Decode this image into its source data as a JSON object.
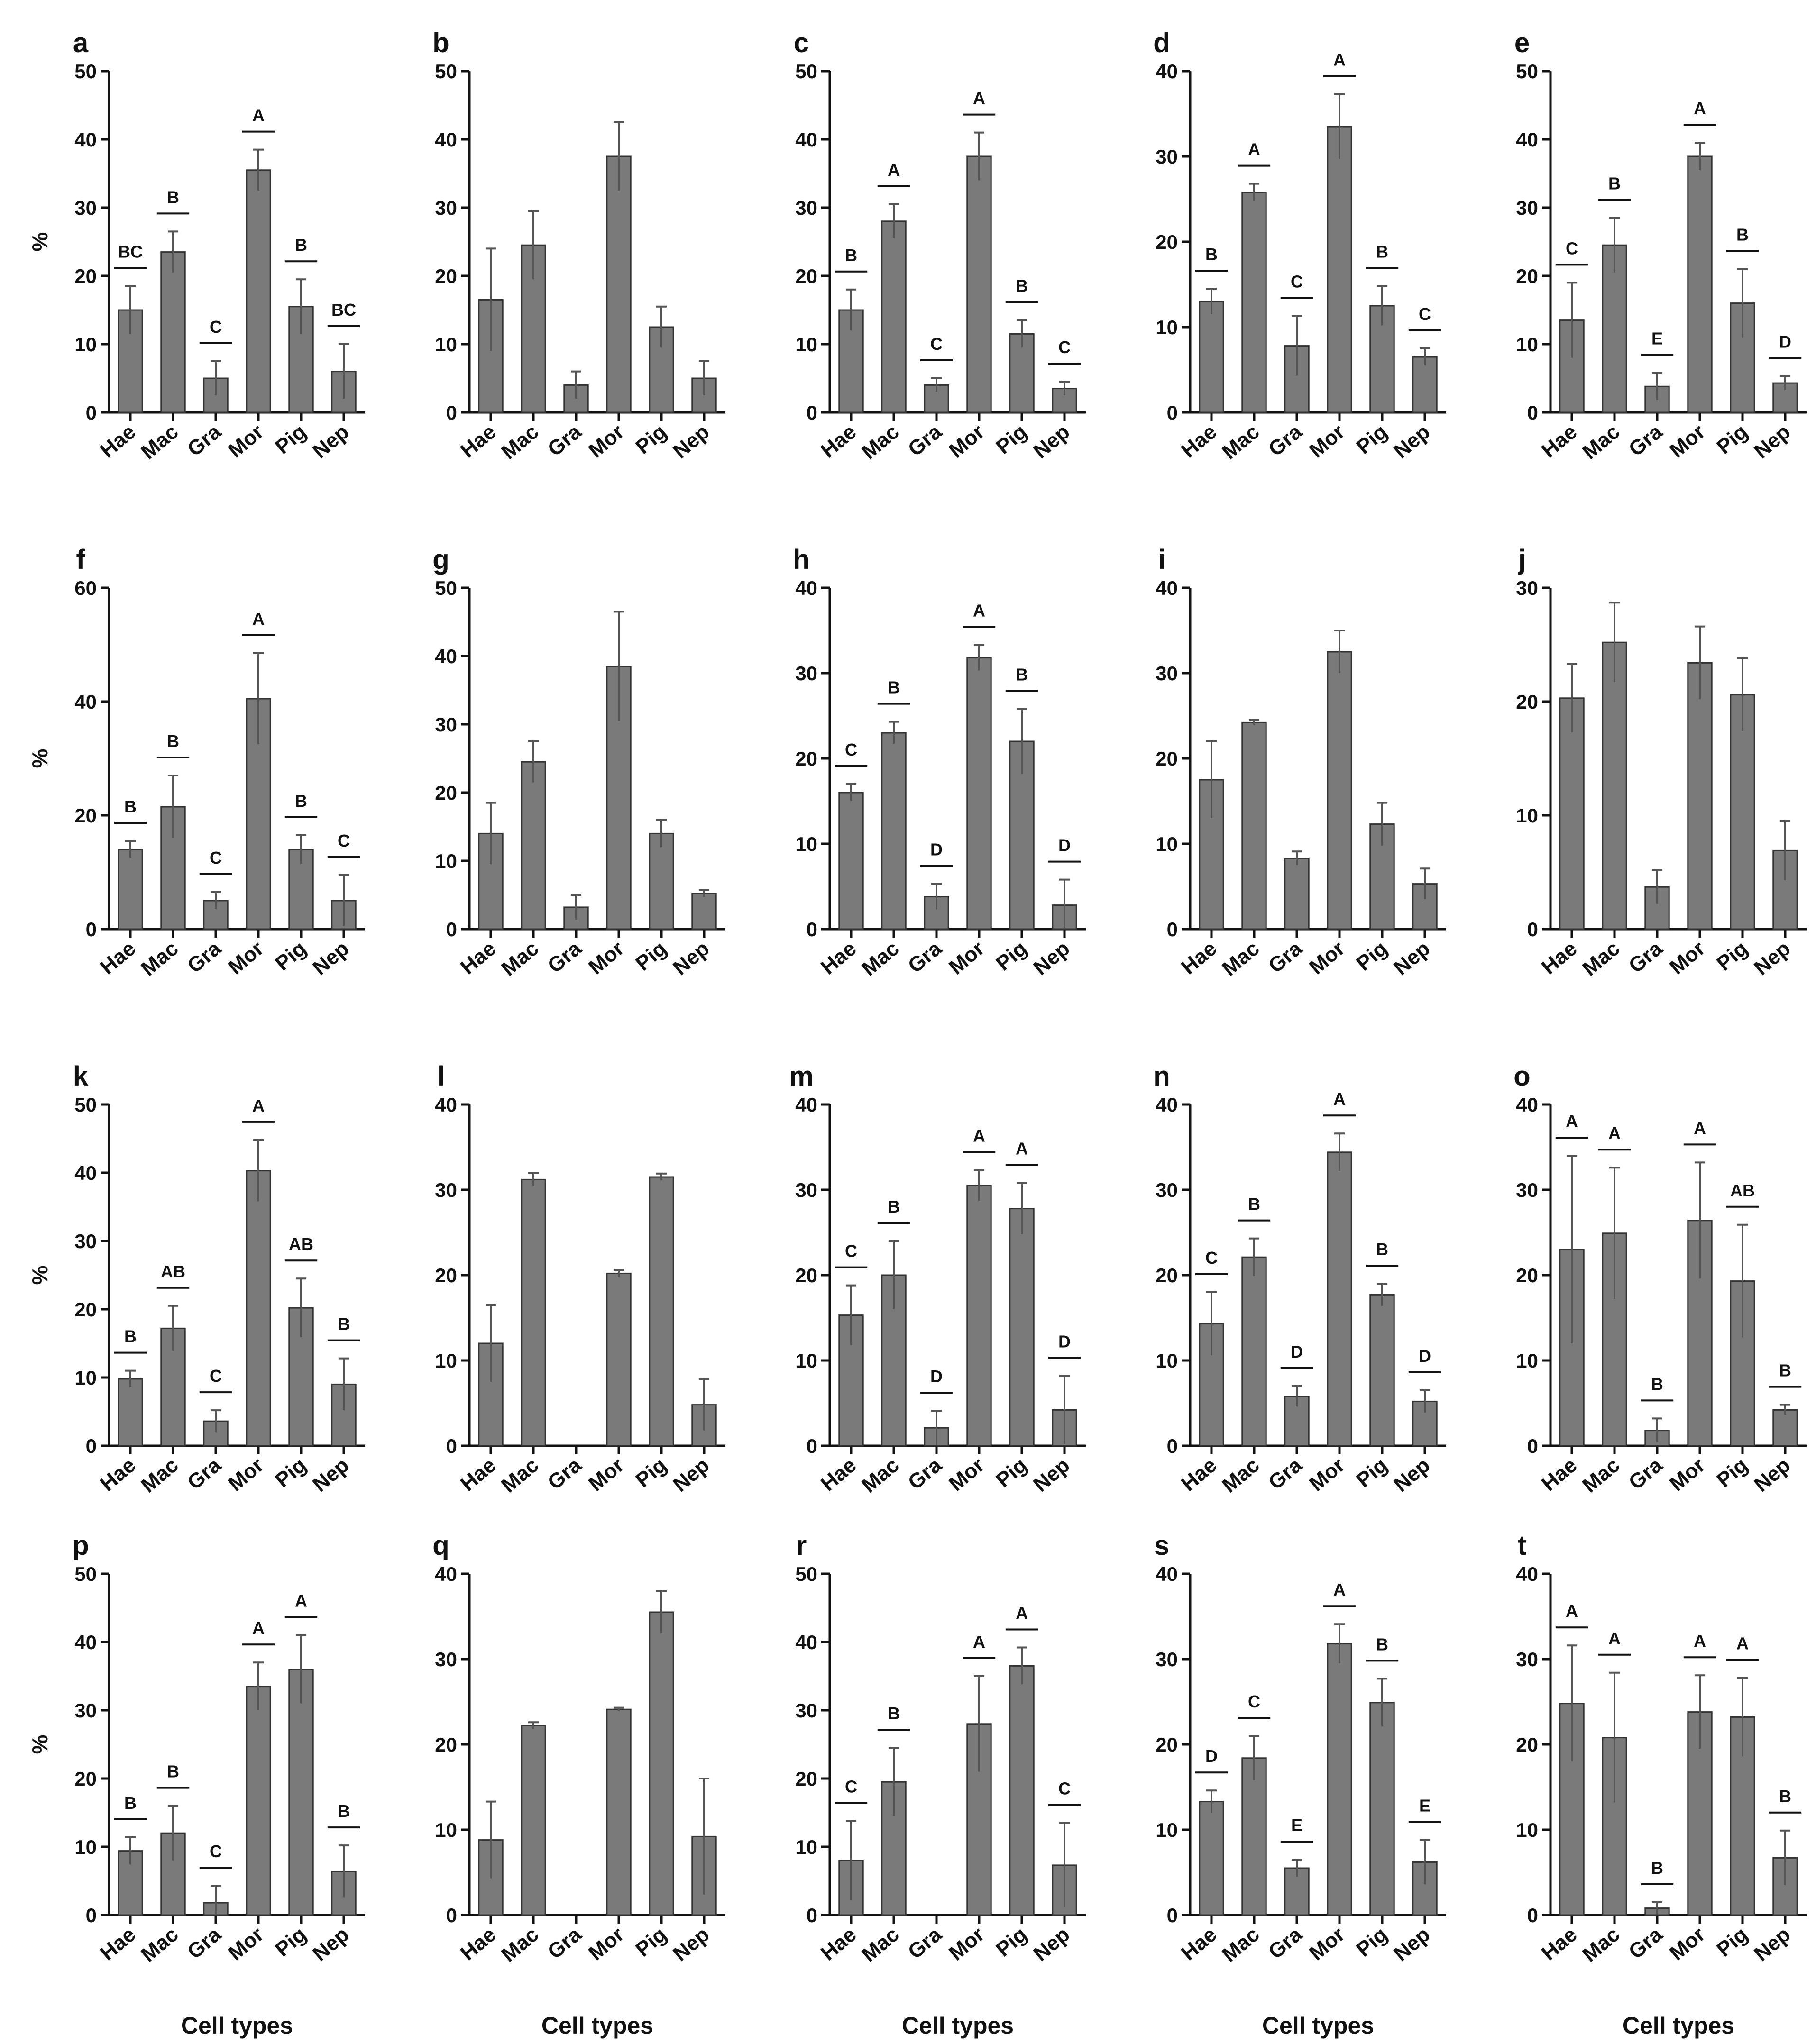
{
  "figure": {
    "y_label": "%",
    "x_label": "Cell types",
    "bar_color": "#7a7a7a"
  },
  "chart_data": [
    {
      "type": "bar",
      "title": "a",
      "categories": [
        "Hae",
        "Mac",
        "Gra",
        "Mor",
        "Pig",
        "Nep"
      ],
      "values": [
        15,
        23.5,
        5,
        35.5,
        15.5,
        6
      ],
      "errors": [
        3.5,
        3,
        2.5,
        3,
        4,
        4
      ],
      "sig": [
        "BC",
        "B",
        "C",
        "A",
        "B",
        "BC"
      ],
      "ylim": [
        0,
        50
      ],
      "yticks": [
        0,
        10,
        20,
        30,
        40,
        50
      ],
      "ylabel": "%",
      "xlabel": ""
    },
    {
      "type": "bar",
      "title": "b",
      "categories": [
        "Hae",
        "Mac",
        "Gra",
        "Mor",
        "Pig",
        "Nep"
      ],
      "values": [
        16.5,
        24.5,
        4,
        37.5,
        12.5,
        5
      ],
      "errors": [
        7.5,
        5,
        2,
        5,
        3,
        2.5
      ],
      "sig": [
        "",
        "",
        "",
        "",
        "",
        ""
      ],
      "ylim": [
        0,
        50
      ],
      "yticks": [
        0,
        10,
        20,
        30,
        40,
        50
      ],
      "ylabel": "",
      "xlabel": ""
    },
    {
      "type": "bar",
      "title": "c",
      "categories": [
        "Hae",
        "Mac",
        "Gra",
        "Mor",
        "Pig",
        "Nep"
      ],
      "values": [
        15,
        28,
        4,
        37.5,
        11.5,
        3.5
      ],
      "errors": [
        3,
        2.5,
        1,
        3.5,
        2,
        1
      ],
      "sig": [
        "B",
        "A",
        "C",
        "A",
        "B",
        "C"
      ],
      "ylim": [
        0,
        50
      ],
      "yticks": [
        0,
        10,
        20,
        30,
        40,
        50
      ],
      "ylabel": "",
      "xlabel": ""
    },
    {
      "type": "bar",
      "title": "d",
      "categories": [
        "Hae",
        "Mac",
        "Gra",
        "Mor",
        "Pig",
        "Nep"
      ],
      "values": [
        13,
        25.8,
        7.8,
        33.5,
        12.5,
        6.5
      ],
      "errors": [
        1.5,
        1,
        3.5,
        3.8,
        2.3,
        1
      ],
      "sig": [
        "B",
        "A",
        "C",
        "A",
        "B",
        "C"
      ],
      "ylim": [
        0,
        40
      ],
      "yticks": [
        0,
        10,
        20,
        30,
        40
      ],
      "ylabel": "",
      "xlabel": ""
    },
    {
      "type": "bar",
      "title": "e",
      "categories": [
        "Hae",
        "Mac",
        "Gra",
        "Mor",
        "Pig",
        "Nep"
      ],
      "values": [
        13.5,
        24.5,
        3.8,
        37.5,
        16,
        4.3
      ],
      "errors": [
        5.5,
        4,
        2,
        2,
        5,
        1
      ],
      "sig": [
        "C",
        "B",
        "E",
        "A",
        "B",
        "D"
      ],
      "ylim": [
        0,
        50
      ],
      "yticks": [
        0,
        10,
        20,
        30,
        40,
        50
      ],
      "ylabel": "",
      "xlabel": ""
    },
    {
      "type": "bar",
      "title": "f",
      "categories": [
        "Hae",
        "Mac",
        "Gra",
        "Mor",
        "Pig",
        "Nep"
      ],
      "values": [
        14,
        21.5,
        5,
        40.5,
        14,
        5
      ],
      "errors": [
        1.5,
        5.5,
        1.5,
        8,
        2.5,
        4.5
      ],
      "sig": [
        "B",
        "B",
        "C",
        "A",
        "B",
        "C"
      ],
      "ylim": [
        0,
        60
      ],
      "yticks": [
        0,
        20,
        40,
        60
      ],
      "ylabel": "%",
      "xlabel": ""
    },
    {
      "type": "bar",
      "title": "g",
      "categories": [
        "Hae",
        "Mac",
        "Gra",
        "Mor",
        "Pig",
        "Nep"
      ],
      "values": [
        14,
        24.5,
        3.2,
        38.5,
        14,
        5.2
      ],
      "errors": [
        4.5,
        3,
        1.8,
        8,
        2,
        0.5
      ],
      "sig": [
        "",
        "",
        "",
        "",
        "",
        ""
      ],
      "ylim": [
        0,
        50
      ],
      "yticks": [
        0,
        10,
        20,
        30,
        40,
        50
      ],
      "ylabel": "",
      "xlabel": ""
    },
    {
      "type": "bar",
      "title": "h",
      "categories": [
        "Hae",
        "Mac",
        "Gra",
        "Mor",
        "Pig",
        "Nep"
      ],
      "values": [
        16,
        23,
        3.8,
        31.8,
        22,
        2.8
      ],
      "errors": [
        1,
        1.3,
        1.5,
        1.5,
        3.8,
        3
      ],
      "sig": [
        "C",
        "B",
        "D",
        "A",
        "B",
        "D"
      ],
      "ylim": [
        0,
        40
      ],
      "yticks": [
        0,
        10,
        20,
        30,
        40
      ],
      "ylabel": "",
      "xlabel": ""
    },
    {
      "type": "bar",
      "title": "i",
      "categories": [
        "Hae",
        "Mac",
        "Gra",
        "Mor",
        "Pig",
        "Nep"
      ],
      "values": [
        17.5,
        24.2,
        8.3,
        32.5,
        12.3,
        5.3
      ],
      "errors": [
        4.5,
        0.3,
        0.8,
        2.5,
        2.5,
        1.8
      ],
      "sig": [
        "",
        "",
        "",
        "",
        "",
        ""
      ],
      "ylim": [
        0,
        40
      ],
      "yticks": [
        0,
        10,
        20,
        30,
        40
      ],
      "ylabel": "",
      "xlabel": ""
    },
    {
      "type": "bar",
      "title": "j",
      "categories": [
        "Hae",
        "Mac",
        "Gra",
        "Mor",
        "Pig",
        "Nep"
      ],
      "values": [
        20.3,
        25.2,
        3.7,
        23.4,
        20.6,
        6.9
      ],
      "errors": [
        3,
        3.5,
        1.5,
        3.2,
        3.2,
        2.6
      ],
      "sig": [
        "",
        "",
        "",
        "",
        "",
        ""
      ],
      "ylim": [
        0,
        30
      ],
      "yticks": [
        0,
        10,
        20,
        30
      ],
      "ylabel": "",
      "xlabel": ""
    },
    {
      "type": "bar",
      "title": "k",
      "categories": [
        "Hae",
        "Mac",
        "Gra",
        "Mor",
        "Pig",
        "Nep"
      ],
      "values": [
        9.8,
        17.2,
        3.6,
        40.3,
        20.2,
        9
      ],
      "errors": [
        1.2,
        3.3,
        1.6,
        4.5,
        4.3,
        3.8
      ],
      "sig": [
        "B",
        "AB",
        "C",
        "A",
        "AB",
        "B"
      ],
      "ylim": [
        0,
        50
      ],
      "yticks": [
        0,
        10,
        20,
        30,
        40,
        50
      ],
      "ylabel": "%",
      "xlabel": ""
    },
    {
      "type": "bar",
      "title": "l",
      "categories": [
        "Hae",
        "Mac",
        "Gra",
        "Mor",
        "Pig",
        "Nep"
      ],
      "values": [
        12,
        31.2,
        0,
        20.2,
        31.5,
        4.8
      ],
      "errors": [
        4.5,
        0.8,
        0,
        0.4,
        0.4,
        3
      ],
      "sig": [
        "",
        "",
        "",
        "",
        "",
        ""
      ],
      "ylim": [
        0,
        40
      ],
      "yticks": [
        0,
        10,
        20,
        30,
        40
      ],
      "ylabel": "",
      "xlabel": ""
    },
    {
      "type": "bar",
      "title": "m",
      "categories": [
        "Hae",
        "Mac",
        "Gra",
        "Mor",
        "Pig",
        "Nep"
      ],
      "values": [
        15.3,
        20,
        2.1,
        30.5,
        27.8,
        4.2
      ],
      "errors": [
        3.5,
        4,
        2,
        1.8,
        3,
        4
      ],
      "sig": [
        "C",
        "B",
        "D",
        "A",
        "A",
        "D"
      ],
      "ylim": [
        0,
        40
      ],
      "yticks": [
        0,
        10,
        20,
        30,
        40
      ],
      "ylabel": "",
      "xlabel": ""
    },
    {
      "type": "bar",
      "title": "n",
      "categories": [
        "Hae",
        "Mac",
        "Gra",
        "Mor",
        "Pig",
        "Nep"
      ],
      "values": [
        14.3,
        22.1,
        5.8,
        34.4,
        17.7,
        5.2
      ],
      "errors": [
        3.7,
        2.2,
        1.2,
        2.2,
        1.3,
        1.3
      ],
      "sig": [
        "C",
        "B",
        "D",
        "A",
        "B",
        "D"
      ],
      "ylim": [
        0,
        40
      ],
      "yticks": [
        0,
        10,
        20,
        30,
        40
      ],
      "ylabel": "",
      "xlabel": ""
    },
    {
      "type": "bar",
      "title": "o",
      "categories": [
        "Hae",
        "Mac",
        "Gra",
        "Mor",
        "Pig",
        "Nep"
      ],
      "values": [
        23,
        24.9,
        1.8,
        26.4,
        19.3,
        4.2
      ],
      "errors": [
        11,
        7.7,
        1.4,
        6.8,
        6.6,
        0.6
      ],
      "sig": [
        "A",
        "A",
        "B",
        "A",
        "AB",
        "B"
      ],
      "ylim": [
        0,
        40
      ],
      "yticks": [
        0,
        10,
        20,
        30,
        40
      ],
      "ylabel": "",
      "xlabel": ""
    },
    {
      "type": "bar",
      "title": "p",
      "categories": [
        "Hae",
        "Mac",
        "Gra",
        "Mor",
        "Pig",
        "Nep"
      ],
      "values": [
        9.4,
        12,
        1.8,
        33.5,
        36,
        6.4
      ],
      "errors": [
        2,
        4,
        2.5,
        3.5,
        5,
        3.8
      ],
      "sig": [
        "B",
        "B",
        "C",
        "A",
        "A",
        "B"
      ],
      "ylim": [
        0,
        50
      ],
      "yticks": [
        0,
        10,
        20,
        30,
        40,
        50
      ],
      "ylabel": "%",
      "xlabel": "Cell types"
    },
    {
      "type": "bar",
      "title": "q",
      "categories": [
        "Hae",
        "Mac",
        "Gra",
        "Mor",
        "Pig",
        "Nep"
      ],
      "values": [
        8.8,
        22.2,
        0,
        24.1,
        35.5,
        9.2
      ],
      "errors": [
        4.5,
        0.4,
        0,
        0.2,
        2.5,
        6.8
      ],
      "sig": [
        "",
        "",
        "",
        "",
        "",
        ""
      ],
      "ylim": [
        0,
        40
      ],
      "yticks": [
        0,
        10,
        20,
        30,
        40
      ],
      "ylabel": "",
      "xlabel": "Cell types"
    },
    {
      "type": "bar",
      "title": "r",
      "categories": [
        "Hae",
        "Mac",
        "Gra",
        "Mor",
        "Pig",
        "Nep"
      ],
      "values": [
        8,
        19.5,
        0,
        28,
        36.5,
        7.3
      ],
      "errors": [
        5.8,
        5,
        0,
        7,
        2.7,
        6.2
      ],
      "sig": [
        "C",
        "B",
        "",
        "A",
        "A",
        "C"
      ],
      "ylim": [
        0,
        50
      ],
      "yticks": [
        0,
        10,
        20,
        30,
        40,
        50
      ],
      "ylabel": "",
      "xlabel": "Cell types"
    },
    {
      "type": "bar",
      "title": "s",
      "categories": [
        "Hae",
        "Mac",
        "Gra",
        "Mor",
        "Pig",
        "Nep"
      ],
      "values": [
        13.3,
        18.4,
        5.5,
        31.8,
        24.9,
        6.2
      ],
      "errors": [
        1.3,
        2.6,
        1,
        2.3,
        2.8,
        2.6
      ],
      "sig": [
        "D",
        "C",
        "E",
        "A",
        "B",
        "E"
      ],
      "ylim": [
        0,
        40
      ],
      "yticks": [
        0,
        10,
        20,
        30,
        40
      ],
      "ylabel": "",
      "xlabel": "Cell types"
    },
    {
      "type": "bar",
      "title": "t",
      "categories": [
        "Hae",
        "Mac",
        "Gra",
        "Mor",
        "Pig",
        "Nep"
      ],
      "values": [
        24.8,
        20.8,
        0.8,
        23.8,
        23.2,
        6.7
      ],
      "errors": [
        6.8,
        7.6,
        0.7,
        4.3,
        4.6,
        3.2
      ],
      "sig": [
        "A",
        "A",
        "B",
        "A",
        "A",
        "B"
      ],
      "ylim": [
        0,
        40
      ],
      "yticks": [
        0,
        10,
        20,
        30,
        40
      ],
      "ylabel": "",
      "xlabel": "Cell types"
    }
  ]
}
